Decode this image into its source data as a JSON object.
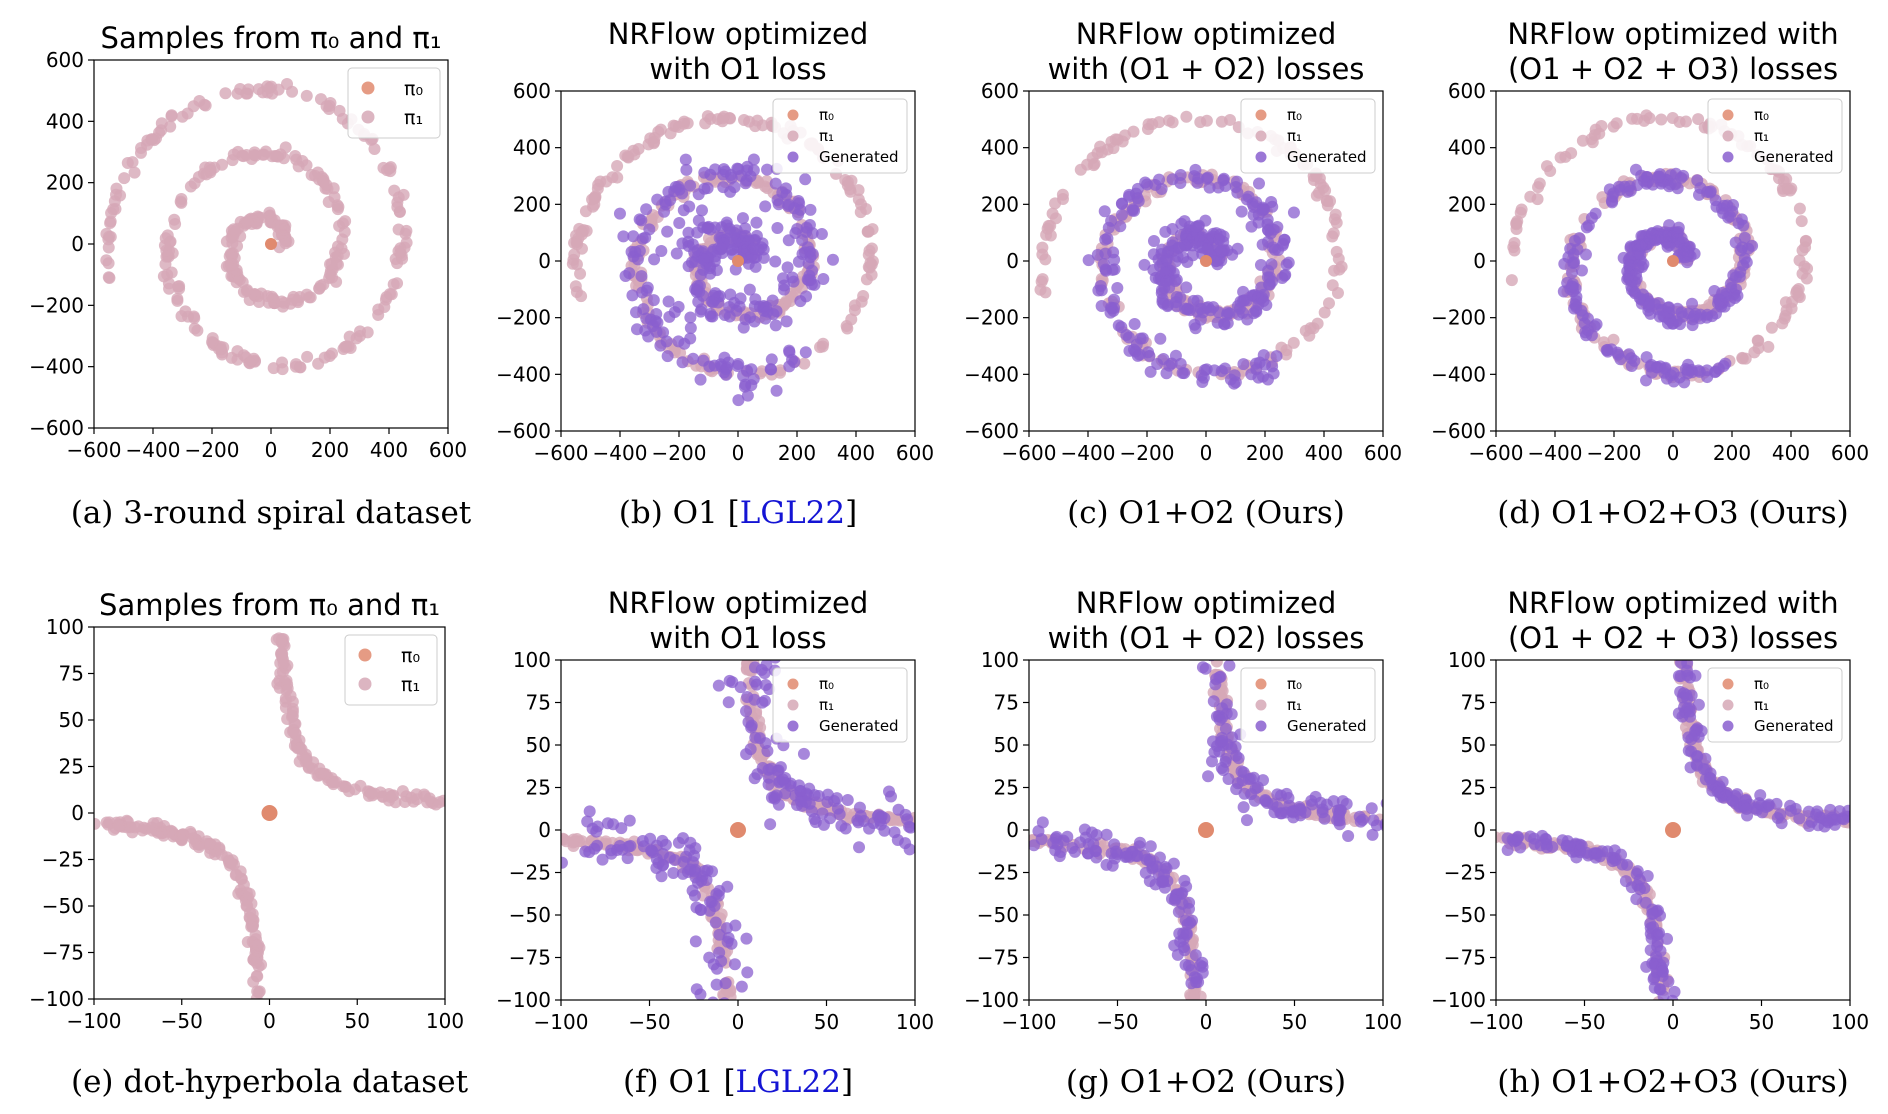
{
  "colors": {
    "pi0": "#e08a6e",
    "pi1": "#d6a8b6",
    "generated": "#8a5fcf",
    "axis": "#000000",
    "ref_link": "#1414d4"
  },
  "chart_data": [
    {
      "type": "scatter",
      "dataset": "spiral",
      "title_lines": [
        "Samples from π₀ and π₁"
      ],
      "xlim": [
        -600,
        600
      ],
      "ylim": [
        -600,
        600
      ],
      "xticks": [
        "−600",
        "−400",
        "−200",
        "0",
        "200",
        "400",
        "600"
      ],
      "yticks": [
        "−600",
        "−400",
        "−200",
        "0",
        "200",
        "400",
        "600"
      ],
      "legend": [
        "π₀",
        "π₁"
      ],
      "legend_position": "upper right",
      "grid": false,
      "caption": "(a) 3-round spiral dataset",
      "series": [
        {
          "name": "π₀",
          "points": [
            [
              0,
              0
            ]
          ]
        },
        {
          "name": "π₁",
          "shape": "spiral",
          "center": [
            0,
            0
          ],
          "start_radius": 40,
          "end_radius": 560,
          "turns": 2.5,
          "direction": "counterclockwise outward"
        }
      ]
    },
    {
      "type": "scatter",
      "dataset": "spiral",
      "title_lines": [
        "NRFlow optimized",
        "with O1 loss"
      ],
      "xlim": [
        -600,
        600
      ],
      "ylim": [
        -600,
        600
      ],
      "xticks": [
        "−600",
        "−400",
        "−200",
        "0",
        "200",
        "400",
        "600"
      ],
      "yticks": [
        "−600",
        "−400",
        "−200",
        "0",
        "200",
        "400",
        "600"
      ],
      "legend": [
        "π₀",
        "π₁",
        "Generated"
      ],
      "legend_position": "upper right",
      "grid": false,
      "caption": "(b) O1 [LGL22]",
      "caption_ref": "LGL22",
      "series": [
        {
          "name": "π₀",
          "points": [
            [
              0,
              0
            ]
          ]
        },
        {
          "name": "π₁",
          "shape": "spiral",
          "center": [
            0,
            0
          ],
          "start_radius": 40,
          "end_radius": 560,
          "turns": 2.5
        },
        {
          "name": "Generated",
          "shape": "spiral",
          "coverage": "inner two rounds",
          "noise": "high"
        }
      ]
    },
    {
      "type": "scatter",
      "dataset": "spiral",
      "title_lines": [
        "NRFlow optimized",
        "with (O1 + O2) losses"
      ],
      "xlim": [
        -600,
        600
      ],
      "ylim": [
        -600,
        600
      ],
      "xticks": [
        "−600",
        "−400",
        "−200",
        "0",
        "200",
        "400",
        "600"
      ],
      "yticks": [
        "−600",
        "−400",
        "−200",
        "0",
        "200",
        "400",
        "600"
      ],
      "legend": [
        "π₀",
        "π₁",
        "Generated"
      ],
      "legend_position": "upper right",
      "grid": false,
      "caption": "(c) O1+O2 (Ours)",
      "series": [
        {
          "name": "π₀",
          "points": [
            [
              0,
              0
            ]
          ]
        },
        {
          "name": "π₁",
          "shape": "spiral",
          "center": [
            0,
            0
          ],
          "start_radius": 40,
          "end_radius": 560,
          "turns": 2.5
        },
        {
          "name": "Generated",
          "shape": "spiral",
          "coverage": "inner two rounds",
          "noise": "medium"
        }
      ]
    },
    {
      "type": "scatter",
      "dataset": "spiral",
      "title_lines": [
        "NRFlow optimized with",
        "(O1 + O2 + O3) losses"
      ],
      "xlim": [
        -600,
        600
      ],
      "ylim": [
        -600,
        600
      ],
      "xticks": [
        "−600",
        "−400",
        "−200",
        "0",
        "200",
        "400",
        "600"
      ],
      "yticks": [
        "−600",
        "−400",
        "−200",
        "0",
        "200",
        "400",
        "600"
      ],
      "legend": [
        "π₀",
        "π₁",
        "Generated"
      ],
      "legend_position": "upper right",
      "grid": false,
      "caption": "(d) O1+O2+O3 (Ours)",
      "series": [
        {
          "name": "π₀",
          "points": [
            [
              0,
              0
            ]
          ]
        },
        {
          "name": "π₁",
          "shape": "spiral",
          "center": [
            0,
            0
          ],
          "start_radius": 40,
          "end_radius": 560,
          "turns": 2.5
        },
        {
          "name": "Generated",
          "shape": "spiral",
          "coverage": "inner two rounds",
          "noise": "low"
        }
      ]
    },
    {
      "type": "scatter",
      "dataset": "hyperbola",
      "title_lines": [
        "Samples from π₀ and π₁"
      ],
      "xlim": [
        -100,
        100
      ],
      "ylim": [
        -100,
        100
      ],
      "xticks": [
        "−100",
        "−50",
        "0",
        "50",
        "100"
      ],
      "yticks": [
        "−100",
        "−75",
        "−50",
        "−25",
        "0",
        "25",
        "50",
        "75",
        "100"
      ],
      "legend": [
        "π₀",
        "π₁"
      ],
      "legend_position": "upper right",
      "grid": false,
      "caption": "(e) dot-hyperbola dataset",
      "series": [
        {
          "name": "π₀",
          "points": [
            [
              0,
              0
            ]
          ]
        },
        {
          "name": "π₁",
          "shape": "hyperbola",
          "equation": "x*y = 600",
          "branches": [
            "x>0,y>0",
            "x<0,y<0"
          ]
        }
      ]
    },
    {
      "type": "scatter",
      "dataset": "hyperbola",
      "title_lines": [
        "NRFlow optimized",
        "with O1 loss"
      ],
      "xlim": [
        -100,
        100
      ],
      "ylim": [
        -100,
        100
      ],
      "xticks": [
        "−100",
        "−50",
        "0",
        "50",
        "100"
      ],
      "yticks": [
        "−100",
        "−75",
        "−50",
        "−25",
        "0",
        "25",
        "50",
        "75",
        "100"
      ],
      "legend": [
        "π₀",
        "π₁",
        "Generated"
      ],
      "legend_position": "upper right",
      "grid": false,
      "caption": "(f) O1 [LGL22]",
      "caption_ref": "LGL22",
      "series": [
        {
          "name": "π₀",
          "points": [
            [
              0,
              0
            ]
          ]
        },
        {
          "name": "π₁",
          "shape": "hyperbola",
          "equation": "x*y = 600"
        },
        {
          "name": "Generated",
          "shape": "hyperbola",
          "noise": "high"
        }
      ]
    },
    {
      "type": "scatter",
      "dataset": "hyperbola",
      "title_lines": [
        "NRFlow optimized",
        "with (O1 + O2) losses"
      ],
      "xlim": [
        -100,
        100
      ],
      "ylim": [
        -100,
        100
      ],
      "xticks": [
        "−100",
        "−50",
        "0",
        "50",
        "100"
      ],
      "yticks": [
        "−100",
        "−75",
        "−50",
        "−25",
        "0",
        "25",
        "50",
        "75",
        "100"
      ],
      "legend": [
        "π₀",
        "π₁",
        "Generated"
      ],
      "legend_position": "upper right",
      "grid": false,
      "caption": "(g) O1+O2 (Ours)",
      "series": [
        {
          "name": "π₀",
          "points": [
            [
              0,
              0
            ]
          ]
        },
        {
          "name": "π₁",
          "shape": "hyperbola",
          "equation": "x*y = 600"
        },
        {
          "name": "Generated",
          "shape": "hyperbola",
          "noise": "medium"
        }
      ]
    },
    {
      "type": "scatter",
      "dataset": "hyperbola",
      "title_lines": [
        "NRFlow optimized with",
        "(O1 + O2 + O3) losses"
      ],
      "xlim": [
        -100,
        100
      ],
      "ylim": [
        -100,
        100
      ],
      "xticks": [
        "−100",
        "−50",
        "0",
        "50",
        "100"
      ],
      "yticks": [
        "−100",
        "−75",
        "−50",
        "−25",
        "0",
        "25",
        "50",
        "75",
        "100"
      ],
      "legend": [
        "π₀",
        "π₁",
        "Generated"
      ],
      "legend_position": "upper right",
      "grid": false,
      "caption": "(h) O1+O2+O3 (Ours)",
      "series": [
        {
          "name": "π₀",
          "points": [
            [
              0,
              0
            ]
          ]
        },
        {
          "name": "π₁",
          "shape": "hyperbola",
          "equation": "x*y = 600"
        },
        {
          "name": "Generated",
          "shape": "hyperbola",
          "noise": "low"
        }
      ]
    }
  ]
}
